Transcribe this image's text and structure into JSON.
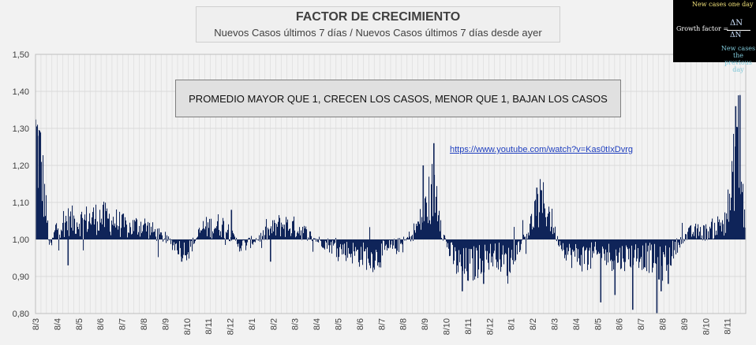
{
  "title": "FACTOR DE CRECIMIENTO",
  "subtitle": "Nuevos Casos últimos 7 días / Nuevos Casos últimos 7 días desde ayer",
  "note": "PROMEDIO MAYOR QUE 1, CRECEN LOS CASOS, MENOR QUE 1, BAJAN LOS CASOS",
  "link_text": "https://www.youtube.com/watch?v=Kas0tIxDvrg",
  "formula": {
    "top_label": "New cases one day",
    "label": "Growth factor =",
    "numerator": "ΔN",
    "denominator": "ΔN",
    "bottom_label_1": "New cases the",
    "bottom_label_2": "previous day"
  },
  "colors": {
    "bars": "#0f2459",
    "grid": "#d9d9d9",
    "background": "#f2f2f2"
  },
  "chart_data": {
    "type": "bar",
    "ylim": [
      0.8,
      1.5
    ],
    "yticks": [
      "0,80",
      "0,90",
      "1,00",
      "1,10",
      "1,20",
      "1,30",
      "1,40",
      "1,50"
    ],
    "baseline": 1.0,
    "xticks": [
      "8/3",
      "8/4",
      "8/5",
      "8/6",
      "8/7",
      "8/8",
      "8/9",
      "8/10",
      "8/11",
      "8/12",
      "8/1",
      "8/2",
      "8/3",
      "8/4",
      "8/5",
      "8/6",
      "8/7",
      "8/8",
      "8/9",
      "8/10",
      "8/11",
      "8/12",
      "8/1",
      "8/2",
      "8/3",
      "8/4",
      "8/5",
      "8/6",
      "8/7",
      "8/8",
      "8/9",
      "8/10",
      "8/11"
    ],
    "profile": [
      [
        0.0,
        1.27
      ],
      [
        0.006,
        1.22
      ],
      [
        0.013,
        1.1
      ],
      [
        0.02,
        0.97
      ],
      [
        0.028,
        1.03
      ],
      [
        0.04,
        1.05
      ],
      [
        0.065,
        1.05
      ],
      [
        0.09,
        1.06
      ],
      [
        0.11,
        1.05
      ],
      [
        0.13,
        1.03
      ],
      [
        0.15,
        1.04
      ],
      [
        0.175,
        1.01
      ],
      [
        0.2,
        0.98
      ],
      [
        0.215,
        0.97
      ],
      [
        0.235,
        1.03
      ],
      [
        0.262,
        1.04
      ],
      [
        0.29,
        0.98
      ],
      [
        0.32,
        1.01
      ],
      [
        0.345,
        1.04
      ],
      [
        0.37,
        1.03
      ],
      [
        0.395,
        1.0
      ],
      [
        0.42,
        0.98
      ],
      [
        0.455,
        0.96
      ],
      [
        0.478,
        0.95
      ],
      [
        0.495,
        0.97
      ],
      [
        0.518,
        0.99
      ],
      [
        0.532,
        1.02
      ],
      [
        0.546,
        1.06
      ],
      [
        0.556,
        1.12
      ],
      [
        0.561,
        1.14
      ],
      [
        0.568,
        1.1
      ],
      [
        0.573,
        1.02
      ],
      [
        0.585,
        0.96
      ],
      [
        0.6,
        0.92
      ],
      [
        0.615,
        0.93
      ],
      [
        0.63,
        0.95
      ],
      [
        0.65,
        0.96
      ],
      [
        0.665,
        0.93
      ],
      [
        0.68,
        0.98
      ],
      [
        0.693,
        1.02
      ],
      [
        0.705,
        1.07
      ],
      [
        0.712,
        1.1
      ],
      [
        0.722,
        1.08
      ],
      [
        0.735,
        1.0
      ],
      [
        0.752,
        0.96
      ],
      [
        0.775,
        0.95
      ],
      [
        0.8,
        0.96
      ],
      [
        0.82,
        0.95
      ],
      [
        0.845,
        0.96
      ],
      [
        0.865,
        0.95
      ],
      [
        0.88,
        0.93
      ],
      [
        0.895,
        0.96
      ],
      [
        0.91,
        1.0
      ],
      [
        0.925,
        1.02
      ],
      [
        0.945,
        1.02
      ],
      [
        0.965,
        1.04
      ],
      [
        0.98,
        1.1
      ],
      [
        0.988,
        1.3
      ],
      [
        0.994,
        1.16
      ],
      [
        1.0,
        1.03
      ]
    ],
    "spikes": [
      [
        0.002,
        1.28
      ],
      [
        0.045,
        0.93
      ],
      [
        0.205,
        0.94
      ],
      [
        0.275,
        1.08
      ],
      [
        0.33,
        0.94
      ],
      [
        0.47,
        0.93
      ],
      [
        0.545,
        1.2
      ],
      [
        0.56,
        1.26
      ],
      [
        0.6,
        0.86
      ],
      [
        0.63,
        0.88
      ],
      [
        0.705,
        1.14
      ],
      [
        0.795,
        0.83
      ],
      [
        0.815,
        0.85
      ],
      [
        0.84,
        0.81
      ],
      [
        0.874,
        0.8
      ],
      [
        0.88,
        0.86
      ],
      [
        0.89,
        0.88
      ],
      [
        0.985,
        1.36
      ],
      [
        0.991,
        1.39
      ]
    ]
  }
}
